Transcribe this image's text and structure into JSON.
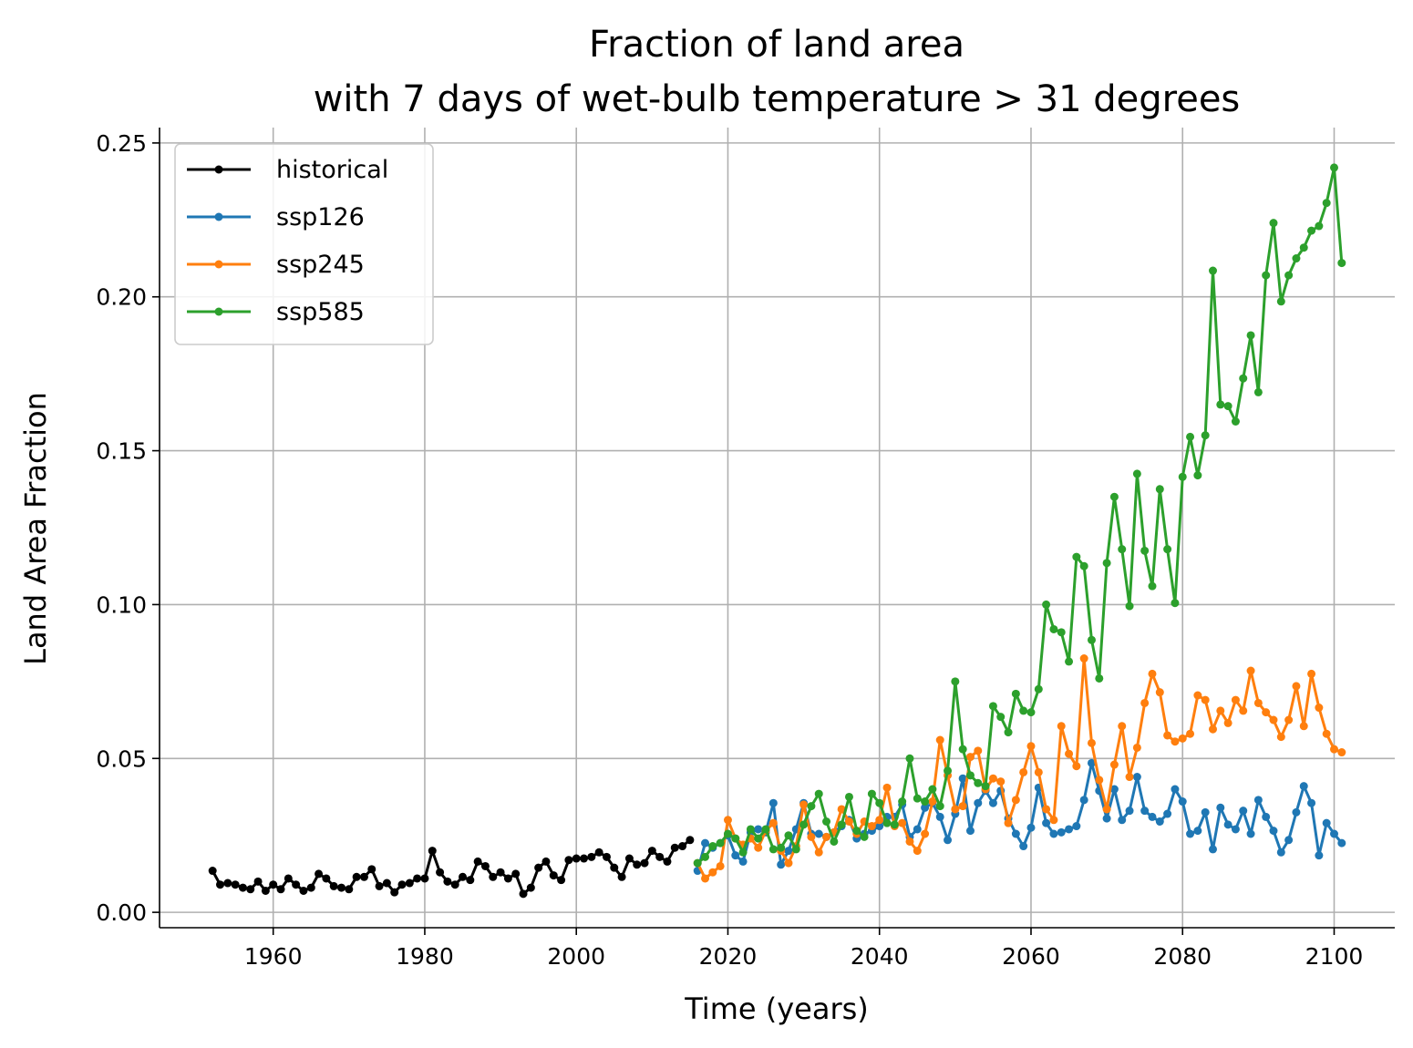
{
  "chart_data": {
    "type": "line",
    "title_line1": "Fraction of land area",
    "title_line2": "with 7 days of wet-bulb temperature > 31 degrees",
    "xlabel": "Time (years)",
    "ylabel": "Land Area Fraction",
    "xlim": [
      1945,
      2108
    ],
    "ylim": [
      -0.005,
      0.255
    ],
    "xticks": [
      1960,
      1980,
      2000,
      2020,
      2040,
      2060,
      2080,
      2100
    ],
    "yticks": [
      0.0,
      0.05,
      0.1,
      0.15,
      0.2,
      0.25
    ],
    "xtick_labels": [
      "1960",
      "1980",
      "2000",
      "2020",
      "2040",
      "2060",
      "2080",
      "2100"
    ],
    "ytick_labels": [
      "0.00",
      "0.05",
      "0.10",
      "0.15",
      "0.20",
      "0.25"
    ],
    "grid": true,
    "legend_position": "top-left",
    "series": [
      {
        "name": "historical",
        "color": "#000000",
        "x": [
          1952,
          1953,
          1954,
          1955,
          1956,
          1957,
          1958,
          1959,
          1960,
          1961,
          1962,
          1963,
          1964,
          1965,
          1966,
          1967,
          1968,
          1969,
          1970,
          1971,
          1972,
          1973,
          1974,
          1975,
          1976,
          1977,
          1978,
          1979,
          1980,
          1981,
          1982,
          1983,
          1984,
          1985,
          1986,
          1987,
          1988,
          1989,
          1990,
          1991,
          1992,
          1993,
          1994,
          1995,
          1996,
          1997,
          1998,
          1999,
          2000,
          2001,
          2002,
          2003,
          2004,
          2005,
          2006,
          2007,
          2008,
          2009,
          2010,
          2011,
          2012,
          2013,
          2014,
          2015
        ],
        "y": [
          0.0135,
          0.009,
          0.0095,
          0.009,
          0.008,
          0.0075,
          0.01,
          0.007,
          0.009,
          0.0075,
          0.011,
          0.009,
          0.007,
          0.008,
          0.0125,
          0.011,
          0.0085,
          0.008,
          0.0075,
          0.0115,
          0.0115,
          0.014,
          0.0085,
          0.0095,
          0.0065,
          0.009,
          0.0095,
          0.011,
          0.011,
          0.02,
          0.013,
          0.01,
          0.009,
          0.0115,
          0.0105,
          0.0165,
          0.015,
          0.0115,
          0.013,
          0.011,
          0.0125,
          0.006,
          0.008,
          0.0145,
          0.0165,
          0.012,
          0.0105,
          0.017,
          0.0175,
          0.0175,
          0.018,
          0.0195,
          0.018,
          0.0145,
          0.0115,
          0.0175,
          0.0155,
          0.016,
          0.02,
          0.018,
          0.0165,
          0.021,
          0.0215,
          0.0235
        ]
      },
      {
        "name": "ssp126",
        "color": "#1f77b4",
        "x": [
          2016,
          2017,
          2018,
          2019,
          2020,
          2021,
          2022,
          2023,
          2024,
          2025,
          2026,
          2027,
          2028,
          2029,
          2030,
          2031,
          2032,
          2033,
          2034,
          2035,
          2036,
          2037,
          2038,
          2039,
          2040,
          2041,
          2042,
          2043,
          2044,
          2045,
          2046,
          2047,
          2048,
          2049,
          2050,
          2051,
          2052,
          2053,
          2054,
          2055,
          2056,
          2057,
          2058,
          2059,
          2060,
          2061,
          2062,
          2063,
          2064,
          2065,
          2066,
          2067,
          2068,
          2069,
          2070,
          2071,
          2072,
          2073,
          2074,
          2075,
          2076,
          2077,
          2078,
          2079,
          2080,
          2081,
          2082,
          2083,
          2084,
          2085,
          2086,
          2087,
          2088,
          2089,
          2090,
          2091,
          2092,
          2093,
          2094,
          2095,
          2096,
          2097,
          2098,
          2099,
          2100,
          2101
        ],
        "y": [
          0.0135,
          0.0225,
          0.021,
          0.0225,
          0.025,
          0.0185,
          0.0165,
          0.026,
          0.027,
          0.026,
          0.0355,
          0.0155,
          0.02,
          0.027,
          0.0355,
          0.0255,
          0.0255,
          0.0245,
          0.026,
          0.028,
          0.03,
          0.024,
          0.0255,
          0.0265,
          0.028,
          0.031,
          0.031,
          0.035,
          0.0245,
          0.027,
          0.034,
          0.0355,
          0.031,
          0.0235,
          0.032,
          0.0435,
          0.0265,
          0.0355,
          0.0395,
          0.0355,
          0.0395,
          0.0305,
          0.0255,
          0.0215,
          0.0275,
          0.0405,
          0.029,
          0.0255,
          0.026,
          0.027,
          0.028,
          0.0365,
          0.0485,
          0.0395,
          0.0305,
          0.04,
          0.03,
          0.033,
          0.044,
          0.033,
          0.031,
          0.0295,
          0.032,
          0.04,
          0.036,
          0.0255,
          0.0265,
          0.0325,
          0.0205,
          0.034,
          0.0285,
          0.027,
          0.033,
          0.0255,
          0.0365,
          0.031,
          0.0265,
          0.0195,
          0.0235,
          0.0325,
          0.041,
          0.0355,
          0.0185,
          0.029,
          0.0255,
          0.0225
        ]
      },
      {
        "name": "ssp245",
        "color": "#ff7f0e",
        "x": [
          2016,
          2017,
          2018,
          2019,
          2020,
          2021,
          2022,
          2023,
          2024,
          2025,
          2026,
          2027,
          2028,
          2029,
          2030,
          2031,
          2032,
          2033,
          2034,
          2035,
          2036,
          2037,
          2038,
          2039,
          2040,
          2041,
          2042,
          2043,
          2044,
          2045,
          2046,
          2047,
          2048,
          2049,
          2050,
          2051,
          2052,
          2053,
          2054,
          2055,
          2056,
          2057,
          2058,
          2059,
          2060,
          2061,
          2062,
          2063,
          2064,
          2065,
          2066,
          2067,
          2068,
          2069,
          2070,
          2071,
          2072,
          2073,
          2074,
          2075,
          2076,
          2077,
          2078,
          2079,
          2080,
          2081,
          2082,
          2083,
          2084,
          2085,
          2086,
          2087,
          2088,
          2089,
          2090,
          2091,
          2092,
          2093,
          2094,
          2095,
          2096,
          2097,
          2098,
          2099,
          2100,
          2101
        ],
        "y": [
          0.016,
          0.011,
          0.013,
          0.015,
          0.03,
          0.024,
          0.022,
          0.024,
          0.021,
          0.0265,
          0.029,
          0.02,
          0.016,
          0.0215,
          0.035,
          0.0245,
          0.0195,
          0.0245,
          0.026,
          0.0335,
          0.0295,
          0.0255,
          0.0295,
          0.028,
          0.03,
          0.0405,
          0.028,
          0.029,
          0.023,
          0.02,
          0.0255,
          0.036,
          0.056,
          0.0445,
          0.0335,
          0.0345,
          0.0505,
          0.0525,
          0.04,
          0.0435,
          0.0425,
          0.029,
          0.0365,
          0.0455,
          0.054,
          0.0455,
          0.0335,
          0.03,
          0.0605,
          0.0515,
          0.0475,
          0.0825,
          0.055,
          0.043,
          0.0335,
          0.048,
          0.0605,
          0.044,
          0.0535,
          0.068,
          0.0775,
          0.0715,
          0.0575,
          0.0555,
          0.0565,
          0.058,
          0.0705,
          0.069,
          0.0595,
          0.0655,
          0.0615,
          0.069,
          0.0655,
          0.0785,
          0.068,
          0.065,
          0.0625,
          0.057,
          0.0625,
          0.0735,
          0.0605,
          0.0775,
          0.0665,
          0.058,
          0.053,
          0.052
        ]
      },
      {
        "name": "ssp585",
        "color": "#2ca02c",
        "x": [
          2016,
          2017,
          2018,
          2019,
          2020,
          2021,
          2022,
          2023,
          2024,
          2025,
          2026,
          2027,
          2028,
          2029,
          2030,
          2031,
          2032,
          2033,
          2034,
          2035,
          2036,
          2037,
          2038,
          2039,
          2040,
          2041,
          2042,
          2043,
          2044,
          2045,
          2046,
          2047,
          2048,
          2049,
          2050,
          2051,
          2052,
          2053,
          2054,
          2055,
          2056,
          2057,
          2058,
          2059,
          2060,
          2061,
          2062,
          2063,
          2064,
          2065,
          2066,
          2067,
          2068,
          2069,
          2070,
          2071,
          2072,
          2073,
          2074,
          2075,
          2076,
          2077,
          2078,
          2079,
          2080,
          2081,
          2082,
          2083,
          2084,
          2085,
          2086,
          2087,
          2088,
          2089,
          2090,
          2091,
          2092,
          2093,
          2094,
          2095,
          2096,
          2097,
          2098,
          2099,
          2100,
          2101
        ],
        "y": [
          0.016,
          0.018,
          0.0215,
          0.0225,
          0.0255,
          0.024,
          0.0195,
          0.027,
          0.024,
          0.027,
          0.0205,
          0.021,
          0.025,
          0.0205,
          0.0285,
          0.0345,
          0.0385,
          0.0295,
          0.023,
          0.0285,
          0.0375,
          0.0265,
          0.0245,
          0.0385,
          0.0355,
          0.029,
          0.0285,
          0.036,
          0.05,
          0.037,
          0.036,
          0.04,
          0.0345,
          0.046,
          0.075,
          0.053,
          0.0445,
          0.042,
          0.041,
          0.067,
          0.0635,
          0.0585,
          0.071,
          0.0655,
          0.065,
          0.0725,
          0.1,
          0.092,
          0.091,
          0.0815,
          0.1155,
          0.1125,
          0.0885,
          0.076,
          0.1135,
          0.135,
          0.118,
          0.0995,
          0.1425,
          0.1175,
          0.106,
          0.1375,
          0.118,
          0.1005,
          0.1415,
          0.1545,
          0.142,
          0.155,
          0.2085,
          0.165,
          0.1645,
          0.1595,
          0.1735,
          0.1875,
          0.169,
          0.207,
          0.224,
          0.1985,
          0.207,
          0.2125,
          0.216,
          0.2215,
          0.223,
          0.2305,
          0.242,
          0.211
        ]
      }
    ]
  }
}
